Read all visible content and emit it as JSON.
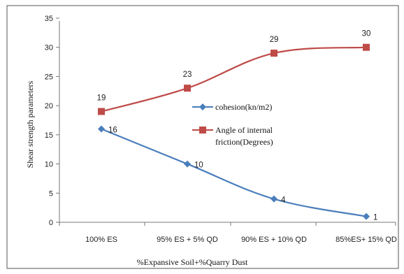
{
  "chart_data": {
    "type": "line",
    "categories": [
      "100% ES",
      "95% ES + 5% QD",
      "90% ES + 10% QD",
      "85%ES+ 15% QD"
    ],
    "series": [
      {
        "name": "cohesion(kn/m2)",
        "values": [
          16,
          10,
          4,
          1
        ],
        "color": "#4a7ebb",
        "marker": "diamond"
      },
      {
        "name": "Angle of internal friction(Degrees)",
        "legend_lines": [
          "Angle of internal",
          "friction(Degrees)"
        ],
        "values": [
          19,
          23,
          29,
          30
        ],
        "color": "#be4b48",
        "marker": "square"
      }
    ],
    "data_labels": [
      [
        "16",
        "10",
        "4",
        "1"
      ],
      [
        "19",
        "23",
        "29",
        "30"
      ]
    ],
    "title": "",
    "xlabel": "%Expansive Soil+%Quarry Dust",
    "ylabel": "Shear strength parameters",
    "ylim": [
      0,
      35
    ],
    "yticks": [
      0,
      5,
      10,
      15,
      20,
      25,
      30,
      35
    ],
    "ytick_labels": [
      "0",
      "5",
      "10",
      "15",
      "20",
      "25",
      "30",
      "35"
    ],
    "grid": false,
    "legend_position": "center"
  }
}
